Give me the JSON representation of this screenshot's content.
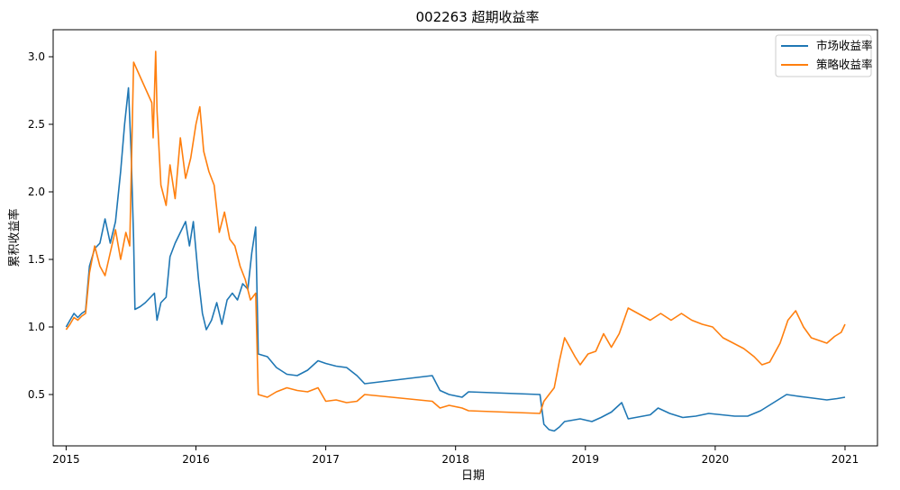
{
  "chart_data": {
    "type": "line",
    "title": "002263 超期收益率",
    "xlabel": "日期",
    "ylabel": "累积收益率",
    "xlim": [
      2014.9,
      2021.25
    ],
    "ylim": [
      0.12,
      3.2
    ],
    "x_ticks": [
      2015,
      2016,
      2017,
      2018,
      2019,
      2020,
      2021
    ],
    "x_tick_labels": [
      "2015",
      "2016",
      "2017",
      "2018",
      "2019",
      "2020",
      "2021"
    ],
    "y_ticks": [
      0.5,
      1.0,
      1.5,
      2.0,
      2.5,
      3.0
    ],
    "y_tick_labels": [
      "0.5",
      "1.0",
      "1.5",
      "2.0",
      "2.5",
      "3.0"
    ],
    "grid": false,
    "legend_position": "top-right",
    "series": [
      {
        "name": "市场收益率",
        "color": "#1f77b4",
        "points": [
          [
            2015.0,
            1.0
          ],
          [
            2015.03,
            1.05
          ],
          [
            2015.06,
            1.1
          ],
          [
            2015.09,
            1.07
          ],
          [
            2015.12,
            1.1
          ],
          [
            2015.15,
            1.12
          ],
          [
            2015.18,
            1.45
          ],
          [
            2015.22,
            1.58
          ],
          [
            2015.26,
            1.62
          ],
          [
            2015.3,
            1.8
          ],
          [
            2015.34,
            1.62
          ],
          [
            2015.38,
            1.78
          ],
          [
            2015.42,
            2.15
          ],
          [
            2015.45,
            2.5
          ],
          [
            2015.48,
            2.77
          ],
          [
            2015.5,
            2.3
          ],
          [
            2015.52,
            1.65
          ],
          [
            2015.53,
            1.13
          ],
          [
            2015.57,
            1.15
          ],
          [
            2015.61,
            1.18
          ],
          [
            2015.65,
            1.22
          ],
          [
            2015.68,
            1.25
          ],
          [
            2015.7,
            1.05
          ],
          [
            2015.73,
            1.18
          ],
          [
            2015.77,
            1.22
          ],
          [
            2015.8,
            1.52
          ],
          [
            2015.84,
            1.62
          ],
          [
            2015.88,
            1.7
          ],
          [
            2015.92,
            1.78
          ],
          [
            2015.95,
            1.6
          ],
          [
            2015.98,
            1.78
          ],
          [
            2016.02,
            1.35
          ],
          [
            2016.05,
            1.1
          ],
          [
            2016.08,
            0.98
          ],
          [
            2016.12,
            1.05
          ],
          [
            2016.16,
            1.18
          ],
          [
            2016.2,
            1.02
          ],
          [
            2016.24,
            1.2
          ],
          [
            2016.28,
            1.25
          ],
          [
            2016.32,
            1.2
          ],
          [
            2016.36,
            1.32
          ],
          [
            2016.4,
            1.28
          ],
          [
            2016.43,
            1.55
          ],
          [
            2016.46,
            1.74
          ],
          [
            2016.48,
            0.8
          ],
          [
            2016.55,
            0.78
          ],
          [
            2016.62,
            0.7
          ],
          [
            2016.7,
            0.65
          ],
          [
            2016.78,
            0.64
          ],
          [
            2016.86,
            0.68
          ],
          [
            2016.94,
            0.75
          ],
          [
            2017.0,
            0.73
          ],
          [
            2017.08,
            0.71
          ],
          [
            2017.16,
            0.7
          ],
          [
            2017.24,
            0.64
          ],
          [
            2017.3,
            0.58
          ],
          [
            2017.82,
            0.64
          ],
          [
            2017.88,
            0.53
          ],
          [
            2017.95,
            0.5
          ],
          [
            2018.05,
            0.48
          ],
          [
            2018.1,
            0.52
          ],
          [
            2018.65,
            0.5
          ],
          [
            2018.68,
            0.28
          ],
          [
            2018.72,
            0.24
          ],
          [
            2018.76,
            0.23
          ],
          [
            2018.8,
            0.26
          ],
          [
            2018.84,
            0.3
          ],
          [
            2018.9,
            0.31
          ],
          [
            2018.96,
            0.32
          ],
          [
            2019.05,
            0.3
          ],
          [
            2019.12,
            0.33
          ],
          [
            2019.2,
            0.37
          ],
          [
            2019.28,
            0.44
          ],
          [
            2019.33,
            0.32
          ],
          [
            2019.5,
            0.35
          ],
          [
            2019.56,
            0.4
          ],
          [
            2019.65,
            0.36
          ],
          [
            2019.75,
            0.33
          ],
          [
            2019.85,
            0.34
          ],
          [
            2019.95,
            0.36
          ],
          [
            2020.05,
            0.35
          ],
          [
            2020.15,
            0.34
          ],
          [
            2020.25,
            0.34
          ],
          [
            2020.35,
            0.38
          ],
          [
            2020.45,
            0.44
          ],
          [
            2020.55,
            0.5
          ],
          [
            2020.62,
            0.49
          ],
          [
            2020.7,
            0.48
          ],
          [
            2020.78,
            0.47
          ],
          [
            2020.86,
            0.46
          ],
          [
            2020.94,
            0.47
          ],
          [
            2021.0,
            0.48
          ]
        ]
      },
      {
        "name": "策略收益率",
        "color": "#ff7f0e",
        "points": [
          [
            2015.0,
            0.98
          ],
          [
            2015.03,
            1.02
          ],
          [
            2015.06,
            1.07
          ],
          [
            2015.09,
            1.05
          ],
          [
            2015.12,
            1.08
          ],
          [
            2015.15,
            1.1
          ],
          [
            2015.18,
            1.4
          ],
          [
            2015.22,
            1.6
          ],
          [
            2015.26,
            1.45
          ],
          [
            2015.3,
            1.38
          ],
          [
            2015.34,
            1.55
          ],
          [
            2015.38,
            1.72
          ],
          [
            2015.42,
            1.5
          ],
          [
            2015.46,
            1.7
          ],
          [
            2015.49,
            1.6
          ],
          [
            2015.52,
            2.96
          ],
          [
            2015.66,
            2.66
          ],
          [
            2015.67,
            2.4
          ],
          [
            2015.69,
            3.04
          ],
          [
            2015.7,
            2.6
          ],
          [
            2015.73,
            2.05
          ],
          [
            2015.77,
            1.9
          ],
          [
            2015.8,
            2.2
          ],
          [
            2015.84,
            1.95
          ],
          [
            2015.88,
            2.4
          ],
          [
            2015.92,
            2.1
          ],
          [
            2015.96,
            2.25
          ],
          [
            2016.0,
            2.5
          ],
          [
            2016.03,
            2.63
          ],
          [
            2016.06,
            2.3
          ],
          [
            2016.1,
            2.15
          ],
          [
            2016.14,
            2.05
          ],
          [
            2016.18,
            1.7
          ],
          [
            2016.22,
            1.85
          ],
          [
            2016.26,
            1.65
          ],
          [
            2016.3,
            1.6
          ],
          [
            2016.34,
            1.45
          ],
          [
            2016.38,
            1.35
          ],
          [
            2016.42,
            1.2
          ],
          [
            2016.46,
            1.25
          ],
          [
            2016.48,
            0.5
          ],
          [
            2016.55,
            0.48
          ],
          [
            2016.62,
            0.52
          ],
          [
            2016.7,
            0.55
          ],
          [
            2016.78,
            0.53
          ],
          [
            2016.86,
            0.52
          ],
          [
            2016.94,
            0.55
          ],
          [
            2017.0,
            0.45
          ],
          [
            2017.08,
            0.46
          ],
          [
            2017.16,
            0.44
          ],
          [
            2017.24,
            0.45
          ],
          [
            2017.3,
            0.5
          ],
          [
            2017.82,
            0.45
          ],
          [
            2017.88,
            0.4
          ],
          [
            2017.95,
            0.42
          ],
          [
            2018.05,
            0.4
          ],
          [
            2018.1,
            0.38
          ],
          [
            2018.65,
            0.36
          ],
          [
            2018.68,
            0.45
          ],
          [
            2018.72,
            0.5
          ],
          [
            2018.76,
            0.55
          ],
          [
            2018.8,
            0.75
          ],
          [
            2018.84,
            0.92
          ],
          [
            2018.88,
            0.85
          ],
          [
            2018.92,
            0.78
          ],
          [
            2018.96,
            0.72
          ],
          [
            2019.02,
            0.8
          ],
          [
            2019.08,
            0.82
          ],
          [
            2019.14,
            0.95
          ],
          [
            2019.2,
            0.85
          ],
          [
            2019.26,
            0.95
          ],
          [
            2019.33,
            1.14
          ],
          [
            2019.5,
            1.05
          ],
          [
            2019.58,
            1.1
          ],
          [
            2019.66,
            1.05
          ],
          [
            2019.74,
            1.1
          ],
          [
            2019.82,
            1.05
          ],
          [
            2019.9,
            1.02
          ],
          [
            2019.98,
            1.0
          ],
          [
            2020.06,
            0.92
          ],
          [
            2020.14,
            0.88
          ],
          [
            2020.22,
            0.84
          ],
          [
            2020.3,
            0.78
          ],
          [
            2020.36,
            0.72
          ],
          [
            2020.42,
            0.74
          ],
          [
            2020.5,
            0.88
          ],
          [
            2020.56,
            1.05
          ],
          [
            2020.62,
            1.12
          ],
          [
            2020.68,
            1.0
          ],
          [
            2020.74,
            0.92
          ],
          [
            2020.8,
            0.9
          ],
          [
            2020.86,
            0.88
          ],
          [
            2020.92,
            0.93
          ],
          [
            2020.97,
            0.96
          ],
          [
            2021.0,
            1.02
          ]
        ]
      }
    ]
  }
}
